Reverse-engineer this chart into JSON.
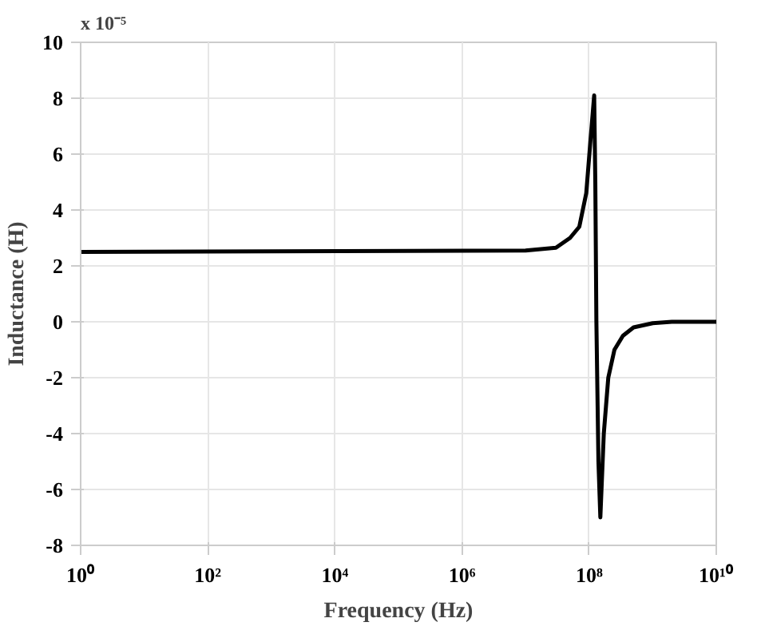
{
  "chart_data": {
    "type": "line",
    "xlabel": "Frequency (Hz)",
    "ylabel": "Inductance (H)",
    "annotations": [
      "x 10⁻⁵"
    ],
    "x": [
      1,
      10000000,
      30000000,
      50000000,
      70000000,
      90000000,
      105000000,
      120000000,
      125000000,
      130000000,
      140000000,
      150000000,
      170000000,
      200000000,
      250000000,
      340000000,
      500000000,
      1000000000,
      2000000000,
      10000000000
    ],
    "series": [
      {
        "color": "#000000",
        "values": [
          2.5,
          2.55,
          2.65,
          3.0,
          3.4,
          4.6,
          6.5,
          8.1,
          5,
          0,
          -5,
          -7.0,
          -4,
          -2.0,
          -1.0,
          -0.5,
          -0.2,
          -0.05,
          0,
          0
        ]
      }
    ],
    "log": "x",
    "xlim": [
      1,
      10000000000
    ],
    "ylim": [
      -8,
      10
    ],
    "xticks": [
      {
        "value": 1,
        "label": "10⁰"
      },
      {
        "value": 100,
        "label": "10²"
      },
      {
        "value": 10000,
        "label": "10⁴"
      },
      {
        "value": 1000000,
        "label": "10⁶"
      },
      {
        "value": 100000000,
        "label": "10⁸"
      },
      {
        "value": 10000000000,
        "label": "10¹⁰"
      }
    ],
    "yticks": [
      -8,
      -6,
      -4,
      -2,
      0,
      2,
      4,
      6,
      8,
      10
    ],
    "grid": true,
    "line_style": "solid",
    "marker": "none"
  }
}
